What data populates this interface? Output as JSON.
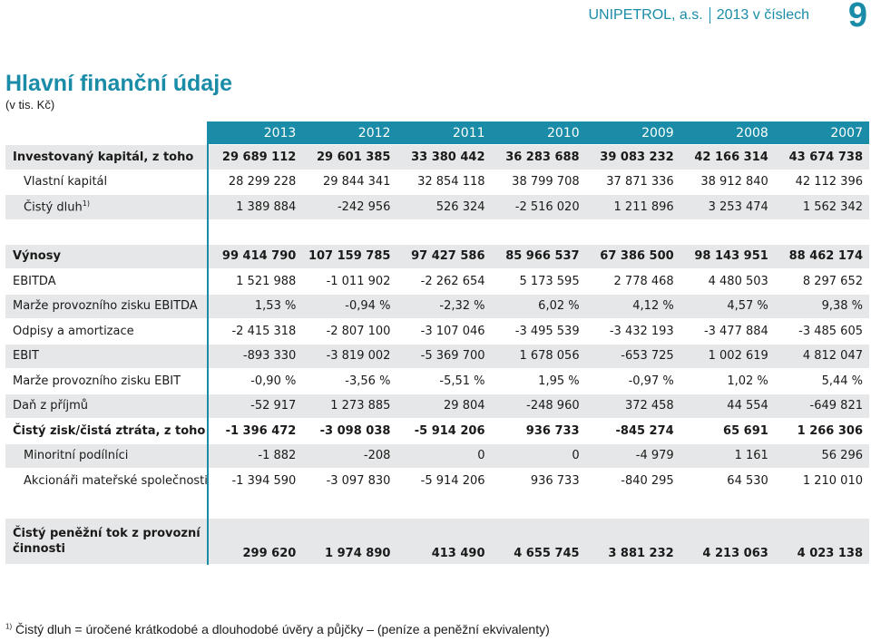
{
  "header": {
    "company": "UNIPETROL, a.s.",
    "report": "2013 v číslech",
    "page_number": "9"
  },
  "title": "Hlavní finanční údaje",
  "subtitle": "(v tis. Kč)",
  "table": {
    "years": [
      "2013",
      "2012",
      "2011",
      "2010",
      "2009",
      "2008",
      "2007"
    ],
    "rows": [
      {
        "label": "Investovaný kapitál, z toho",
        "values": [
          "29 689 112",
          "29 601 385",
          "33 380 442",
          "36 283 688",
          "39 083 232",
          "42 166 314",
          "43 674 738"
        ]
      },
      {
        "label": "Vlastní kapitál",
        "values": [
          "28 299 228",
          "29 844 341",
          "32 854 118",
          "38 799 708",
          "37 871 336",
          "38 912 840",
          "42 112 396"
        ]
      },
      {
        "label": "Čistý dluh",
        "footnote": "1)",
        "values": [
          "1 389 884",
          "-242 956",
          "526 324",
          "-2 516 020",
          "1 211 896",
          "3 253 474",
          "1 562 342"
        ]
      },
      {
        "label": "Výnosy",
        "values": [
          "99 414 790",
          "107 159 785",
          "97 427 586",
          "85 966 537",
          "67 386 500",
          "98 143 951",
          "88 462 174"
        ]
      },
      {
        "label": "EBITDA",
        "values": [
          "1 521 988",
          "-1 011 902",
          "-2 262 654",
          "5 173 595",
          "2 778 468",
          "4 480 503",
          "8 297 652"
        ]
      },
      {
        "label": "Marže provozního zisku EBITDA",
        "values": [
          "1,53 %",
          "-0,94 %",
          "-2,32 %",
          "6,02 %",
          "4,12 %",
          "4,57 %",
          "9,38 %"
        ]
      },
      {
        "label": "Odpisy a amortizace",
        "values": [
          "-2 415 318",
          "-2 807 100",
          "-3 107 046",
          "-3 495 539",
          "-3 432 193",
          "-3 477 884",
          "-3 485 605"
        ]
      },
      {
        "label": "EBIT",
        "values": [
          "-893 330",
          "-3 819 002",
          "-5 369 700",
          "1 678 056",
          "-653 725",
          "1 002 619",
          "4 812 047"
        ]
      },
      {
        "label": "Marže provozního zisku EBIT",
        "values": [
          "-0,90 %",
          "-3,56 %",
          "-5,51 %",
          "1,95 %",
          "-0,97 %",
          "1,02 %",
          "5,44 %"
        ]
      },
      {
        "label": "Daň z příjmů",
        "values": [
          "-52 917",
          "1 273 885",
          "29 804",
          "-248 960",
          "372 458",
          "44 554",
          "-649 821"
        ]
      },
      {
        "label": "Čistý zisk/čistá ztráta, z toho",
        "values": [
          "-1 396 472",
          "-3 098 038",
          "-5 914 206",
          "936 733",
          "-845 274",
          "65 691",
          "1 266 306"
        ]
      },
      {
        "label": "Minoritní podílníci",
        "values": [
          "-1 882",
          "-208",
          "0",
          "0",
          "-4 979",
          "1 161",
          "56 296"
        ]
      },
      {
        "label": "Akcionáři mateřské společnosti",
        "values": [
          "-1 394 590",
          "-3 097 830",
          "-5 914 206",
          "936 733",
          "-840 295",
          "64 530",
          "1 210 010"
        ]
      },
      {
        "label_line1": "Čistý peněžní tok z provozní",
        "label_line2": "činnosti",
        "values": [
          "299 620",
          "1 974 890",
          "413 490",
          "4 655 745",
          "3 881 232",
          "4 213 063",
          "4 023 138"
        ]
      }
    ]
  },
  "footnote": {
    "marker": "1)",
    "text": "Čistý dluh = úročené krátkodobé a dlouhodobé úvěry a půjčky – (peníze a peněžní ekvivalenty)"
  },
  "colors": {
    "accent": "#1a8ca8",
    "row_shade": "#e6e7e8"
  }
}
